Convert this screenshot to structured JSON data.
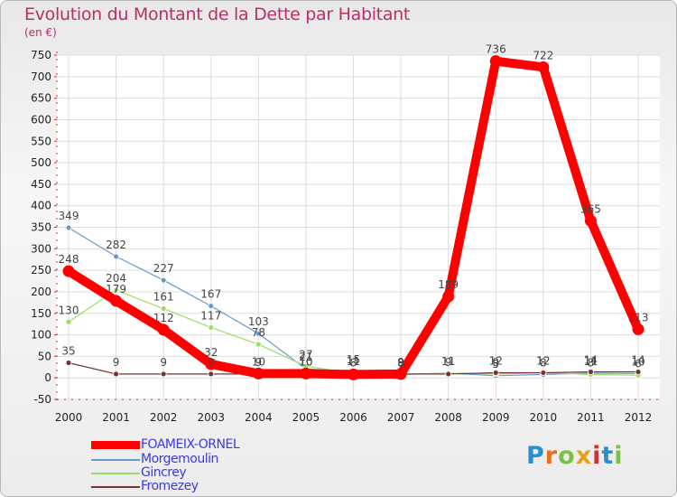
{
  "chart_data": {
    "type": "line",
    "title": "Evolution du Montant de la Dette par Habitant",
    "ylabel": "(en €)",
    "xlabel": "",
    "x": [
      "2000",
      "2001",
      "2002",
      "2003",
      "2004",
      "2005",
      "2006",
      "2007",
      "2008",
      "2009",
      "2010",
      "2011",
      "2012"
    ],
    "ylim": [
      -50,
      750
    ],
    "yticks": [
      -50,
      0,
      50,
      100,
      150,
      200,
      250,
      300,
      350,
      400,
      450,
      500,
      550,
      600,
      650,
      700,
      750
    ],
    "ytick_labels": [
      "-50",
      "0",
      "50",
      "100",
      "150",
      "200",
      "250",
      "300",
      "350",
      "400",
      "450",
      "500",
      "550",
      "600",
      "650",
      "700",
      "750"
    ],
    "series": [
      {
        "name": "FOAMEIX-ORNEL",
        "color": "#ff0000",
        "values": [
          248,
          179,
          112,
          32,
          10,
          10,
          8,
          9,
          189,
          736,
          722,
          365,
          113
        ],
        "labels": [
          "248",
          "179",
          "112",
          "32",
          "10",
          "10",
          "8",
          "9",
          "189",
          "736",
          "722",
          "365",
          "113"
        ]
      },
      {
        "name": "Morgemoulin",
        "color": "#6699cc",
        "values": [
          349,
          282,
          227,
          167,
          103,
          21,
          15,
          8,
          11,
          5,
          8,
          11,
          10
        ],
        "labels": [
          "349",
          "282",
          "227",
          "167",
          "103",
          "21",
          "15",
          "8",
          "11",
          "5",
          "8",
          "11",
          "10"
        ]
      },
      {
        "name": "Gincrey",
        "color": "#99dd66",
        "values": [
          130,
          204,
          161,
          117,
          78,
          27,
          11,
          8,
          11,
          9,
          12,
          8,
          6
        ],
        "labels": [
          "130",
          "204",
          "161",
          "117",
          "78",
          "27",
          "11",
          "8",
          "11",
          "9",
          "12",
          "8",
          "6"
        ]
      },
      {
        "name": "Fromezey",
        "color": "#773333",
        "values": [
          35,
          9,
          9,
          9,
          9,
          10,
          11,
          9,
          9,
          12,
          12,
          14,
          14
        ],
        "labels": [
          "35",
          "9",
          "9",
          "9",
          "9",
          "10",
          "11",
          "9",
          "9",
          "12",
          "12",
          "14",
          "14"
        ]
      }
    ]
  },
  "brand": {
    "letters": [
      "P",
      "r",
      "o",
      "x",
      "i",
      "t",
      "i"
    ],
    "colors": [
      "#2a8fd0",
      "#e8701a",
      "#7cc04a",
      "#e8a21a",
      "#cc3333",
      "#2a8fd0",
      "#7cc04a"
    ]
  }
}
